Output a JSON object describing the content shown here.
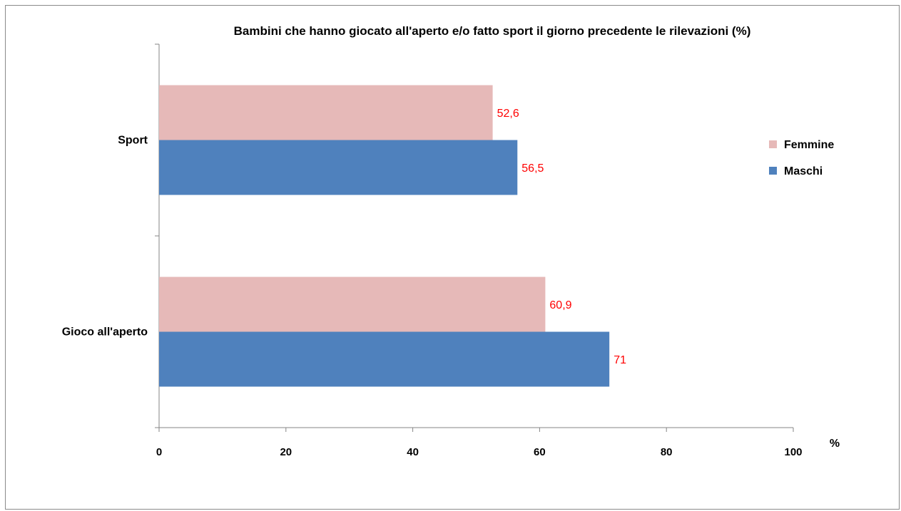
{
  "chart_data": {
    "type": "bar",
    "orientation": "horizontal",
    "title": "Bambini  che hanno giocato all'aperto e/o fatto sport il giorno precedente le rilevazioni (%)",
    "categories": [
      "Sport",
      "Gioco all'aperto"
    ],
    "series": [
      {
        "name": "Femmine",
        "values": [
          52.6,
          60.9
        ],
        "labels": [
          "52,6",
          "60,9"
        ],
        "color": "#e6b9b8"
      },
      {
        "name": "Maschi",
        "values": [
          56.5,
          71
        ],
        "labels": [
          "56,5",
          "71"
        ],
        "color": "#4f81bd"
      }
    ],
    "xlim": [
      0,
      100
    ],
    "xticks": [
      "0",
      "20",
      "40",
      "60",
      "80",
      "100"
    ],
    "x_unit_label": "%",
    "data_label_color": "#ff0000",
    "grid": false,
    "legend_position": "right"
  }
}
